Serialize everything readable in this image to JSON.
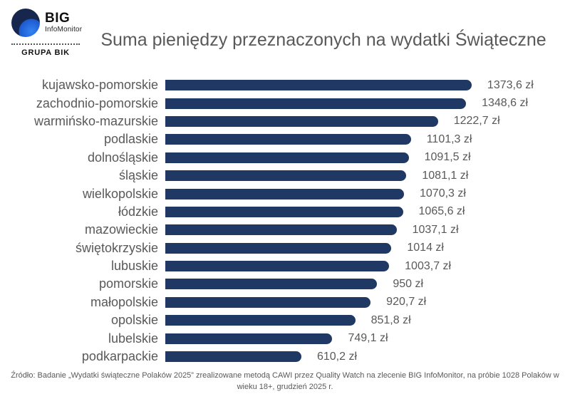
{
  "logo": {
    "brand": "BIG",
    "sub_brand": "InfoMonitor",
    "group": "GRUPA BIK"
  },
  "header": {
    "title": "Suma pieniędzy przeznaczonych na wydatki Świąteczne"
  },
  "chart_data": {
    "type": "bar",
    "orientation": "horizontal",
    "title": "Suma pieniędzy przeznaczonych na wydatki Świąteczne",
    "unit": "zł",
    "categories": [
      "kujawsko-pomorskie",
      "zachodnio-pomorskie",
      "warmińsko-mazurskie",
      "podlaskie",
      "dolnośląskie",
      "śląskie",
      "wielkopolskie",
      "łódzkie",
      "mazowieckie",
      "świętokrzyskie",
      "lubuskie",
      "pomorskie",
      "małopolskie",
      "opolskie",
      "lubelskie",
      "podkarpackie"
    ],
    "values": [
      1373.6,
      1348.6,
      1222.7,
      1101.3,
      1091.5,
      1081.1,
      1070.3,
      1065.6,
      1037.1,
      1014,
      1003.7,
      950,
      920.7,
      851.8,
      749.1,
      610.2
    ],
    "value_labels": [
      "1373,6 zł",
      "1348,6 zł",
      "1222,7 zł",
      "1101,3 zł",
      "1091,5 zł",
      "1081,1 zł",
      "1070,3 zł",
      "1065,6 zł",
      "1037,1 zł",
      "1014 zł",
      "1003,7 zł",
      "950 zł",
      "920,7 zł",
      "851,8 zł",
      "749,1 zł",
      "610,2 zł"
    ],
    "bar_color": "#1f3864",
    "xlim": [
      0,
      1400
    ],
    "grid": false,
    "legend": false,
    "value_labels_position": "right-of-bar"
  },
  "footer": {
    "source": "Źródło: Badanie „Wydatki świąteczne Polaków 2025” zrealizowane metodą CAWI przez Quality Watch na zlecenie BIG InfoMonitor, na próbie 1028 Polaków w wieku 18+, grudzień 2025 r."
  }
}
